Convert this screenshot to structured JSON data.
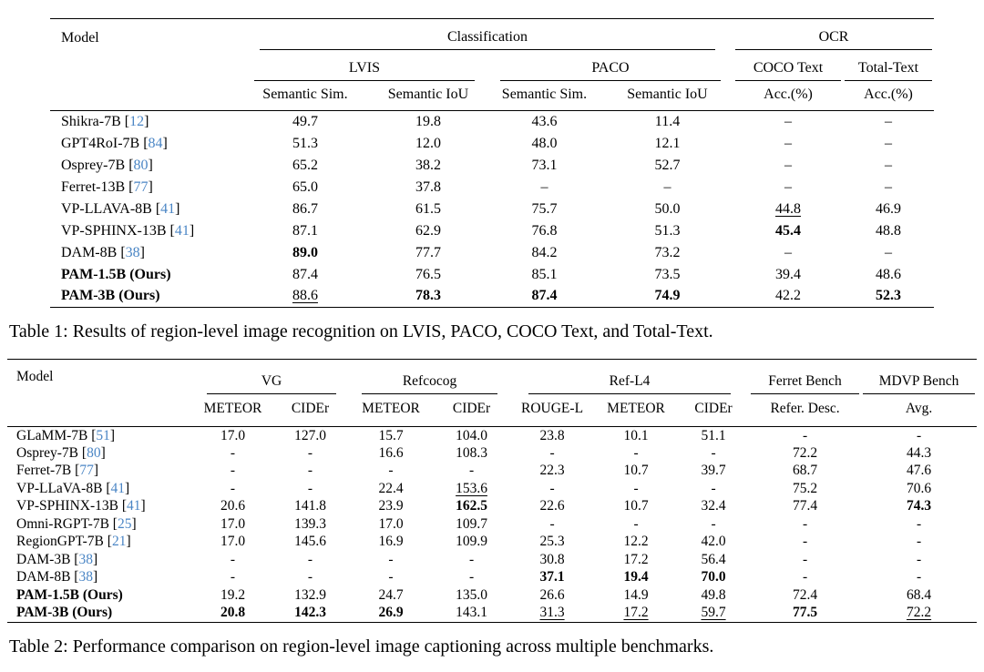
{
  "meta": {
    "background": "#ffffff",
    "text_color": "#000000",
    "cite_color": "#4b86c5",
    "rule_color": "#000000"
  },
  "table1": {
    "caption": "Table 1: Results of region-level image recognition on LVIS, PACO, COCO Text, and Total-Text.",
    "header": {
      "model": "Model",
      "top": [
        {
          "label": "Classification"
        },
        {
          "label": "OCR"
        }
      ],
      "mid": [
        {
          "label": "LVIS"
        },
        {
          "label": "PACO"
        },
        {
          "label": "COCO Text"
        },
        {
          "label": "Total-Text"
        }
      ],
      "metrics": [
        "Semantic Sim.",
        "Semantic IoU",
        "Semantic Sim.",
        "Semantic IoU",
        "Acc.(%)",
        "Acc.(%)"
      ]
    },
    "rows": [
      {
        "model": "Shikra-7B",
        "cite": "12",
        "bold_model": false,
        "cells": [
          {
            "t": "49.7"
          },
          {
            "t": "19.8"
          },
          {
            "t": "43.6"
          },
          {
            "t": "11.4"
          },
          {
            "t": "–"
          },
          {
            "t": "–"
          }
        ]
      },
      {
        "model": "GPT4RoI-7B",
        "cite": "84",
        "bold_model": false,
        "cells": [
          {
            "t": "51.3"
          },
          {
            "t": "12.0"
          },
          {
            "t": "48.0"
          },
          {
            "t": "12.1"
          },
          {
            "t": "–"
          },
          {
            "t": "–"
          }
        ]
      },
      {
        "model": "Osprey-7B",
        "cite": "80",
        "bold_model": false,
        "cells": [
          {
            "t": "65.2"
          },
          {
            "t": "38.2"
          },
          {
            "t": "73.1"
          },
          {
            "t": "52.7"
          },
          {
            "t": "–"
          },
          {
            "t": "–"
          }
        ]
      },
      {
        "model": "Ferret-13B",
        "cite": "77",
        "bold_model": false,
        "cells": [
          {
            "t": "65.0"
          },
          {
            "t": "37.8"
          },
          {
            "t": "–"
          },
          {
            "t": "–"
          },
          {
            "t": "–"
          },
          {
            "t": "–"
          }
        ]
      },
      {
        "model": "VP-LLAVA-8B",
        "cite": "41",
        "bold_model": false,
        "cells": [
          {
            "t": "86.7"
          },
          {
            "t": "61.5"
          },
          {
            "t": "75.7"
          },
          {
            "t": "50.0"
          },
          {
            "t": "44.8",
            "s": "u"
          },
          {
            "t": "46.9"
          }
        ]
      },
      {
        "model": "VP-SPHINX-13B",
        "cite": "41",
        "bold_model": false,
        "cells": [
          {
            "t": "87.1"
          },
          {
            "t": "62.9"
          },
          {
            "t": "76.8"
          },
          {
            "t": "51.3"
          },
          {
            "t": "45.4",
            "s": "b"
          },
          {
            "t": "48.8"
          }
        ]
      },
      {
        "model": "DAM-8B",
        "cite": "38",
        "bold_model": false,
        "cells": [
          {
            "t": "89.0",
            "s": "b"
          },
          {
            "t": "77.7"
          },
          {
            "t": "84.2"
          },
          {
            "t": "73.2"
          },
          {
            "t": "–"
          },
          {
            "t": "–"
          }
        ]
      },
      {
        "model": "PAM-1.5B (Ours)",
        "cite": "",
        "bold_model": true,
        "cells": [
          {
            "t": "87.4"
          },
          {
            "t": "76.5"
          },
          {
            "t": "85.1"
          },
          {
            "t": "73.5"
          },
          {
            "t": "39.4"
          },
          {
            "t": "48.6"
          }
        ]
      },
      {
        "model": "PAM-3B (Ours)",
        "cite": "",
        "bold_model": true,
        "cells": [
          {
            "t": "88.6",
            "s": "u"
          },
          {
            "t": "78.3",
            "s": "b"
          },
          {
            "t": "87.4",
            "s": "b"
          },
          {
            "t": "74.9",
            "s": "b"
          },
          {
            "t": "42.2"
          },
          {
            "t": "52.3",
            "s": "b"
          }
        ]
      }
    ]
  },
  "table2": {
    "caption": "Table 2: Performance comparison on region-level image captioning across multiple benchmarks.",
    "header": {
      "model": "Model",
      "top": [
        {
          "label": "VG"
        },
        {
          "label": "Refcocog"
        },
        {
          "label": "Ref-L4"
        },
        {
          "label": "Ferret Bench"
        },
        {
          "label": "MDVP Bench"
        }
      ],
      "metrics": [
        "METEOR",
        "CIDEr",
        "METEOR",
        "CIDEr",
        "ROUGE-L",
        "METEOR",
        "CIDEr",
        "Refer. Desc.",
        "Avg."
      ]
    },
    "rows": [
      {
        "model": "GLaMM-7B",
        "cite": "51",
        "bold_model": false,
        "cells": [
          {
            "t": "17.0"
          },
          {
            "t": "127.0"
          },
          {
            "t": "15.7"
          },
          {
            "t": "104.0"
          },
          {
            "t": "23.8"
          },
          {
            "t": "10.1"
          },
          {
            "t": "51.1"
          },
          {
            "t": "-"
          },
          {
            "t": "-"
          }
        ]
      },
      {
        "model": "Osprey-7B",
        "cite": "80",
        "bold_model": false,
        "cells": [
          {
            "t": "-"
          },
          {
            "t": "-"
          },
          {
            "t": "16.6"
          },
          {
            "t": "108.3"
          },
          {
            "t": "-"
          },
          {
            "t": "-"
          },
          {
            "t": "-"
          },
          {
            "t": "72.2"
          },
          {
            "t": "44.3"
          }
        ]
      },
      {
        "model": "Ferret-7B",
        "cite": "77",
        "bold_model": false,
        "cells": [
          {
            "t": "-"
          },
          {
            "t": "-"
          },
          {
            "t": "-"
          },
          {
            "t": "-"
          },
          {
            "t": "22.3"
          },
          {
            "t": "10.7"
          },
          {
            "t": "39.7"
          },
          {
            "t": "68.7"
          },
          {
            "t": "47.6"
          }
        ]
      },
      {
        "model": "VP-LLaVA-8B",
        "cite": "41",
        "bold_model": false,
        "cells": [
          {
            "t": "-"
          },
          {
            "t": "-"
          },
          {
            "t": "22.4"
          },
          {
            "t": "153.6",
            "s": "u"
          },
          {
            "t": "-"
          },
          {
            "t": "-"
          },
          {
            "t": "-"
          },
          {
            "t": "75.2"
          },
          {
            "t": "70.6"
          }
        ]
      },
      {
        "model": "VP-SPHINX-13B",
        "cite": "41",
        "bold_model": false,
        "cells": [
          {
            "t": "20.6"
          },
          {
            "t": "141.8"
          },
          {
            "t": "23.9"
          },
          {
            "t": "162.5",
            "s": "b"
          },
          {
            "t": "22.6"
          },
          {
            "t": "10.7"
          },
          {
            "t": "32.4"
          },
          {
            "t": "77.4"
          },
          {
            "t": "74.3",
            "s": "b"
          }
        ]
      },
      {
        "model": "Omni-RGPT-7B",
        "cite": "25",
        "bold_model": false,
        "cells": [
          {
            "t": "17.0"
          },
          {
            "t": "139.3"
          },
          {
            "t": "17.0"
          },
          {
            "t": "109.7"
          },
          {
            "t": "-"
          },
          {
            "t": "-"
          },
          {
            "t": "-"
          },
          {
            "t": "-"
          },
          {
            "t": "-"
          }
        ]
      },
      {
        "model": "RegionGPT-7B",
        "cite": "21",
        "bold_model": false,
        "cells": [
          {
            "t": "17.0"
          },
          {
            "t": "145.6"
          },
          {
            "t": "16.9"
          },
          {
            "t": "109.9"
          },
          {
            "t": "25.3"
          },
          {
            "t": "12.2"
          },
          {
            "t": "42.0"
          },
          {
            "t": "-"
          },
          {
            "t": "-"
          }
        ]
      },
      {
        "model": "DAM-3B",
        "cite": "38",
        "bold_model": false,
        "cells": [
          {
            "t": "-"
          },
          {
            "t": "-"
          },
          {
            "t": "-"
          },
          {
            "t": "-"
          },
          {
            "t": "30.8"
          },
          {
            "t": "17.2"
          },
          {
            "t": "56.4"
          },
          {
            "t": "-"
          },
          {
            "t": "-"
          }
        ]
      },
      {
        "model": "DAM-8B",
        "cite": "38",
        "bold_model": false,
        "cells": [
          {
            "t": "-"
          },
          {
            "t": "-"
          },
          {
            "t": "-"
          },
          {
            "t": "-"
          },
          {
            "t": "37.1",
            "s": "b"
          },
          {
            "t": "19.4",
            "s": "b"
          },
          {
            "t": "70.0",
            "s": "b"
          },
          {
            "t": "-"
          },
          {
            "t": "-"
          }
        ]
      },
      {
        "model": "PAM-1.5B (Ours)",
        "cite": "",
        "bold_model": true,
        "cells": [
          {
            "t": "19.2"
          },
          {
            "t": "132.9"
          },
          {
            "t": "24.7"
          },
          {
            "t": "135.0"
          },
          {
            "t": "26.6"
          },
          {
            "t": "14.9"
          },
          {
            "t": "49.8"
          },
          {
            "t": "72.4"
          },
          {
            "t": "68.4"
          }
        ]
      },
      {
        "model": "PAM-3B (Ours)",
        "cite": "",
        "bold_model": true,
        "cells": [
          {
            "t": "20.8",
            "s": "b"
          },
          {
            "t": "142.3",
            "s": "b"
          },
          {
            "t": "26.9",
            "s": "b"
          },
          {
            "t": "143.1"
          },
          {
            "t": "31.3",
            "s": "u"
          },
          {
            "t": "17.2",
            "s": "u"
          },
          {
            "t": "59.7",
            "s": "u"
          },
          {
            "t": "77.5",
            "s": "b"
          },
          {
            "t": "72.2",
            "s": "u"
          }
        ]
      }
    ]
  }
}
